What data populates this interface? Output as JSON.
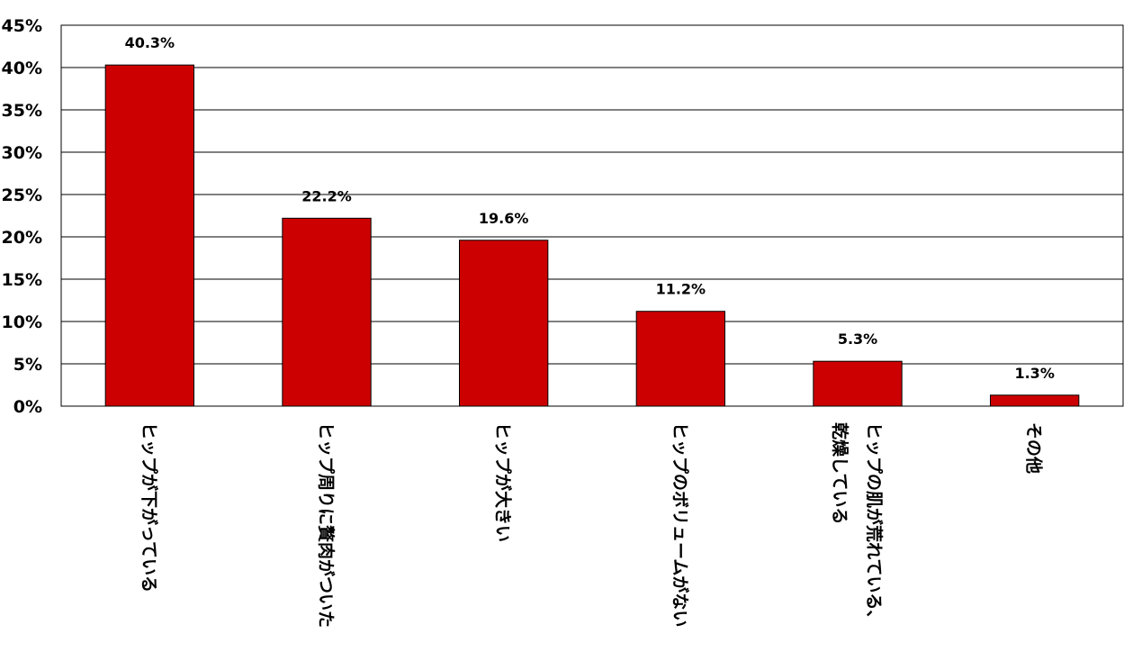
{
  "chart_data": {
    "type": "bar",
    "categories": [
      [
        "ヒップが下がっている"
      ],
      [
        "ヒップ周りに贅肉がついた"
      ],
      [
        "ヒップが大きい"
      ],
      [
        "ヒップのボリュームがない"
      ],
      [
        "ヒップの肌が荒れている、",
        "乾燥している"
      ],
      [
        "その他"
      ]
    ],
    "values": [
      40.3,
      22.2,
      19.6,
      11.2,
      5.3,
      1.3
    ],
    "data_labels": [
      "40.3%",
      "22.2%",
      "19.6%",
      "11.2%",
      "5.3%",
      "1.3%"
    ],
    "y_ticks": [
      "0%",
      "5%",
      "10%",
      "15%",
      "20%",
      "25%",
      "30%",
      "35%",
      "40%",
      "45%"
    ],
    "ylim": [
      0,
      45
    ],
    "grid": true,
    "bar_color": "#cc0000",
    "title": "",
    "xlabel": "",
    "ylabel": ""
  }
}
